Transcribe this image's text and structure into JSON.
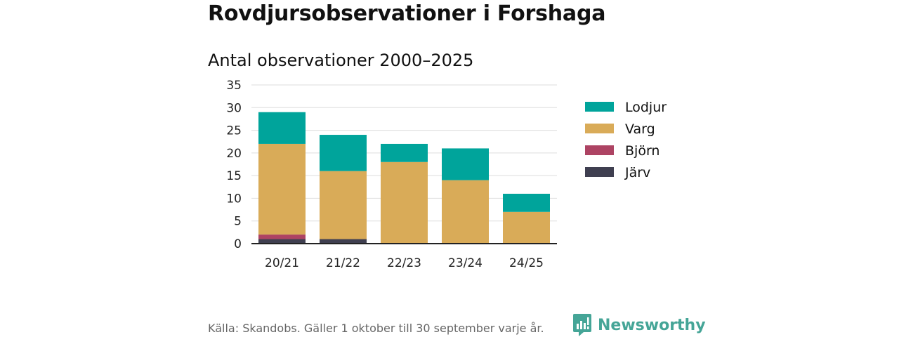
{
  "title": "Rovdjursobservationer i Forshaga",
  "subtitle": "Antal observationer 2000–2025",
  "footer": {
    "source": "Källa: Skandobs. Gäller 1 oktober till 30 september varje år.",
    "brand": "Newsworthy",
    "brand_color": "#45a597"
  },
  "chart_data": {
    "type": "bar",
    "stacked": true,
    "title": "Antal observationer 2000–2025",
    "xlabel": "",
    "ylabel": "",
    "ylim": [
      0,
      35
    ],
    "yticks": [
      0,
      5,
      10,
      15,
      20,
      25,
      30,
      35
    ],
    "grid": true,
    "legend_position": "right",
    "categories": [
      "20/21",
      "21/22",
      "22/23",
      "23/24",
      "24/25"
    ],
    "series": [
      {
        "name": "Järv",
        "color": "#3f3f50",
        "values": [
          1,
          1,
          0,
          0,
          0
        ]
      },
      {
        "name": "Björn",
        "color": "#ad4363",
        "values": [
          1,
          0,
          0,
          0,
          0
        ]
      },
      {
        "name": "Varg",
        "color": "#d9ab58",
        "values": [
          20,
          15,
          18,
          14,
          7
        ]
      },
      {
        "name": "Lodjur",
        "color": "#00a49b",
        "values": [
          7,
          8,
          4,
          7,
          4
        ]
      }
    ],
    "legend_order": [
      "Lodjur",
      "Varg",
      "Björn",
      "Järv"
    ]
  }
}
